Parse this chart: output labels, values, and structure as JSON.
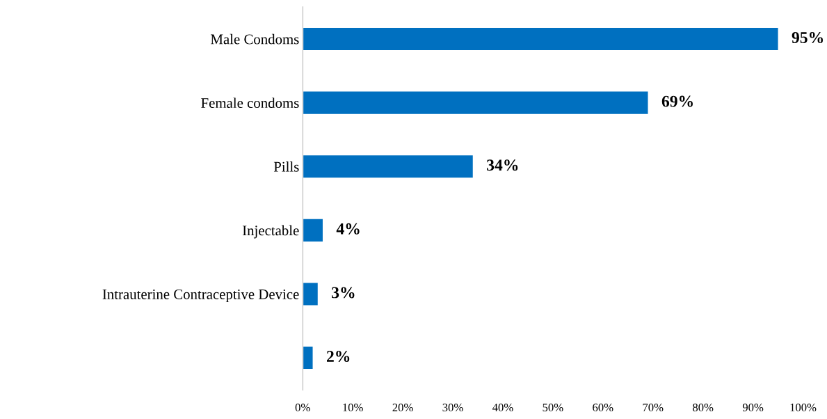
{
  "chart_data": {
    "type": "bar",
    "orientation": "horizontal",
    "categories": [
      "Male Condoms",
      "Female condoms",
      "Pills",
      "Injectable",
      "Intrauterine Contraceptive Device",
      null
    ],
    "values": [
      95,
      69,
      34,
      4,
      3,
      2
    ],
    "value_labels": [
      "95%",
      "69%",
      "34%",
      "4%",
      "3%",
      "2%"
    ],
    "color": "#0070c0",
    "xlim": [
      0,
      100
    ],
    "xticks": [
      {
        "value": 0,
        "label": "0%"
      },
      {
        "value": 10,
        "label": "10%"
      },
      {
        "value": 20,
        "label": "20%"
      },
      {
        "value": 30,
        "label": "30%"
      },
      {
        "value": 40,
        "label": "40%"
      },
      {
        "value": 50,
        "label": "50%"
      },
      {
        "value": 60,
        "label": "60%"
      },
      {
        "value": 70,
        "label": "70%"
      },
      {
        "value": 80,
        "label": "80%"
      },
      {
        "value": 90,
        "label": "90%"
      },
      {
        "value": 100,
        "label": "100%"
      }
    ],
    "grid": false,
    "legend": false
  }
}
